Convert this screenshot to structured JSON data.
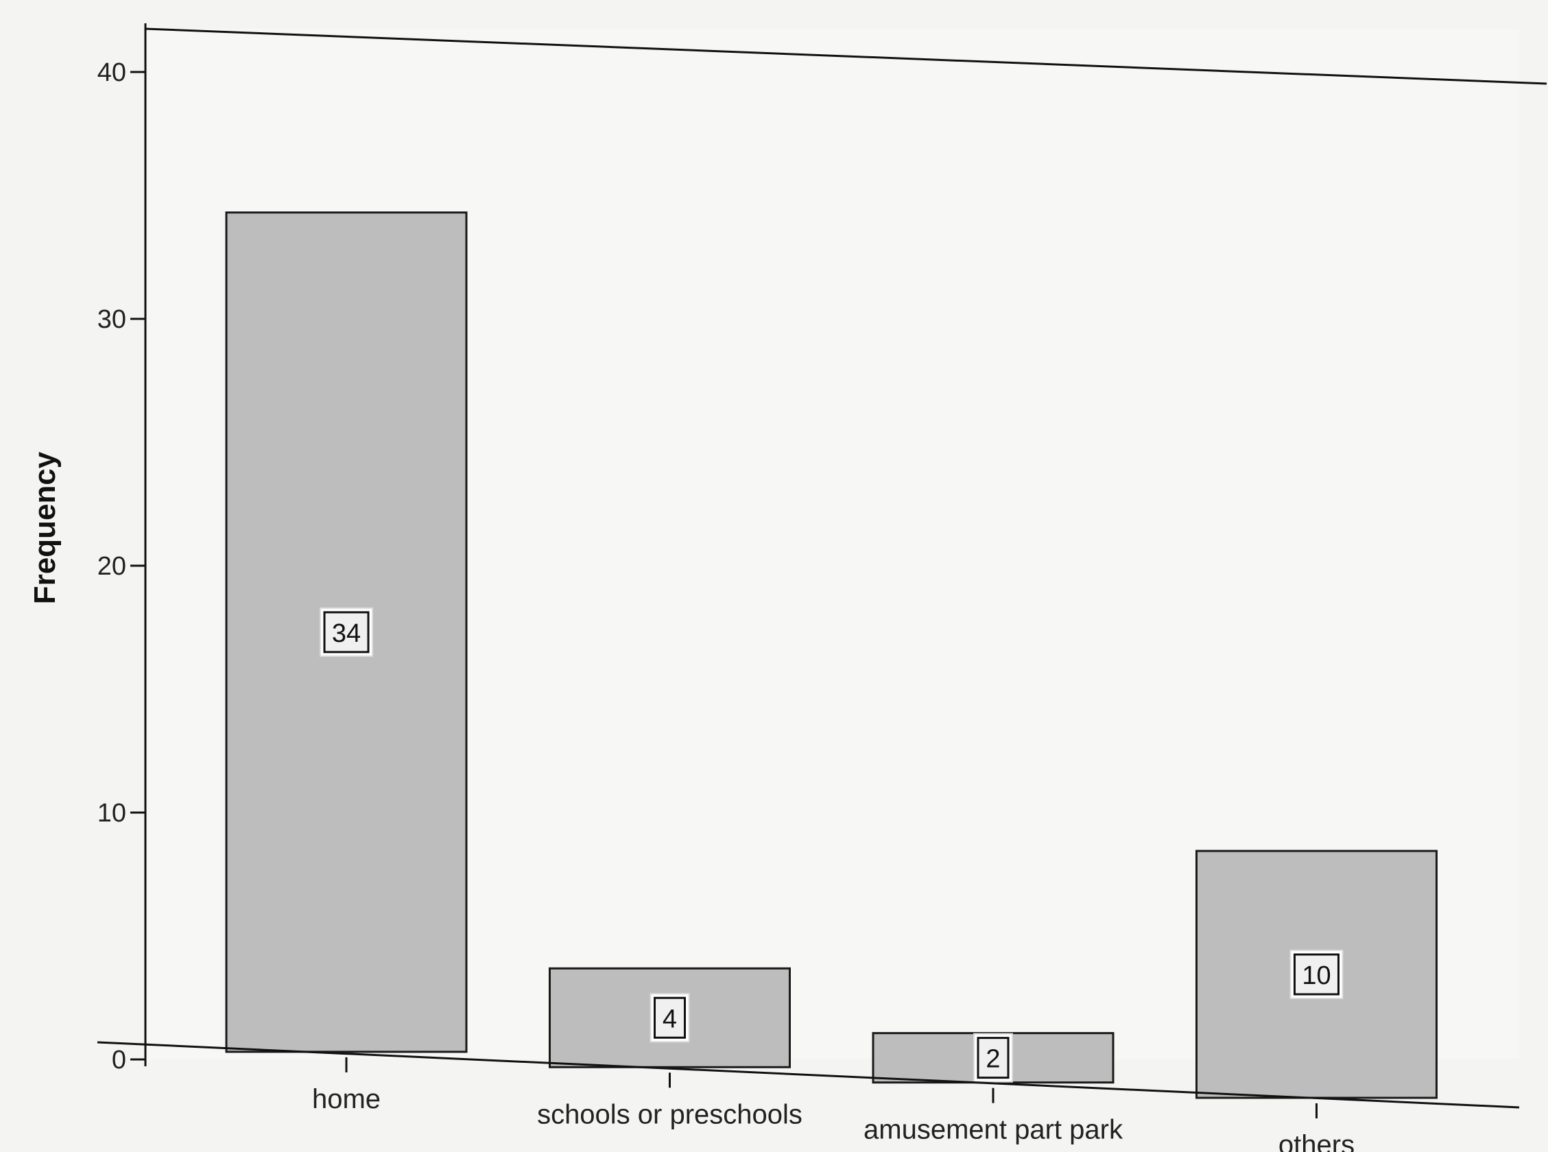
{
  "chart_data": {
    "type": "bar",
    "title": "",
    "xlabel": "",
    "ylabel": "Frequency",
    "ylim": [
      0,
      40
    ],
    "yticks": [
      0,
      10,
      20,
      30,
      40
    ],
    "categories": [
      "home",
      "schools or preschools",
      "amusement part park",
      "others"
    ],
    "values": [
      34,
      4,
      2,
      10
    ],
    "data_labels": [
      "34",
      "4",
      "2",
      "10"
    ],
    "grid": false,
    "legend": "none",
    "colors": {
      "background": "#f4f4f2",
      "plot_background": "#f7f7f5",
      "bar_fill": "#bdbdbd",
      "bar_stroke": "#1a1a1a",
      "axis": "#111111"
    }
  }
}
